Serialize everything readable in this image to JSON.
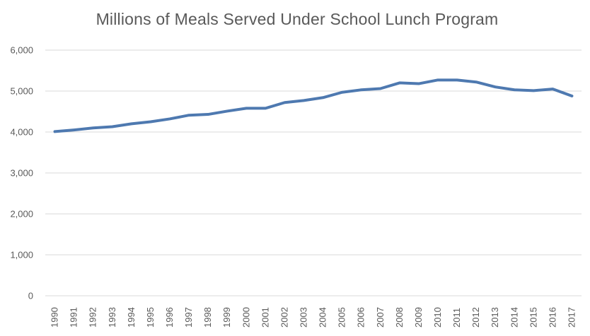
{
  "chart_data": {
    "type": "line",
    "title": "Millions of Meals Served Under School Lunch Program",
    "xlabel": "",
    "ylabel": "",
    "ylim": [
      0,
      6000
    ],
    "yticks": [
      0,
      1000,
      2000,
      3000,
      4000,
      5000,
      6000
    ],
    "ytick_labels": [
      "0",
      "1,000",
      "2,000",
      "3,000",
      "4,000",
      "5,000",
      "6,000"
    ],
    "grid": true,
    "legend": "none",
    "categories": [
      "1990",
      "1991",
      "1992",
      "1993",
      "1994",
      "1995",
      "1996",
      "1997",
      "1998",
      "1999",
      "2000",
      "2001",
      "2002",
      "2003",
      "2004",
      "2005",
      "2006",
      "2007",
      "2008",
      "2009",
      "2010",
      "2011",
      "2012",
      "2013",
      "2014",
      "2015",
      "2016",
      "2017"
    ],
    "series": [
      {
        "name": "Meals Served (millions)",
        "color": "#4e79b0",
        "values": [
          4010,
          4050,
          4100,
          4130,
          4200,
          4250,
          4320,
          4410,
          4430,
          4510,
          4580,
          4580,
          4720,
          4770,
          4840,
          4970,
          5030,
          5060,
          5200,
          5180,
          5270,
          5270,
          5220,
          5100,
          5030,
          5010,
          5050,
          4880
        ]
      }
    ]
  }
}
